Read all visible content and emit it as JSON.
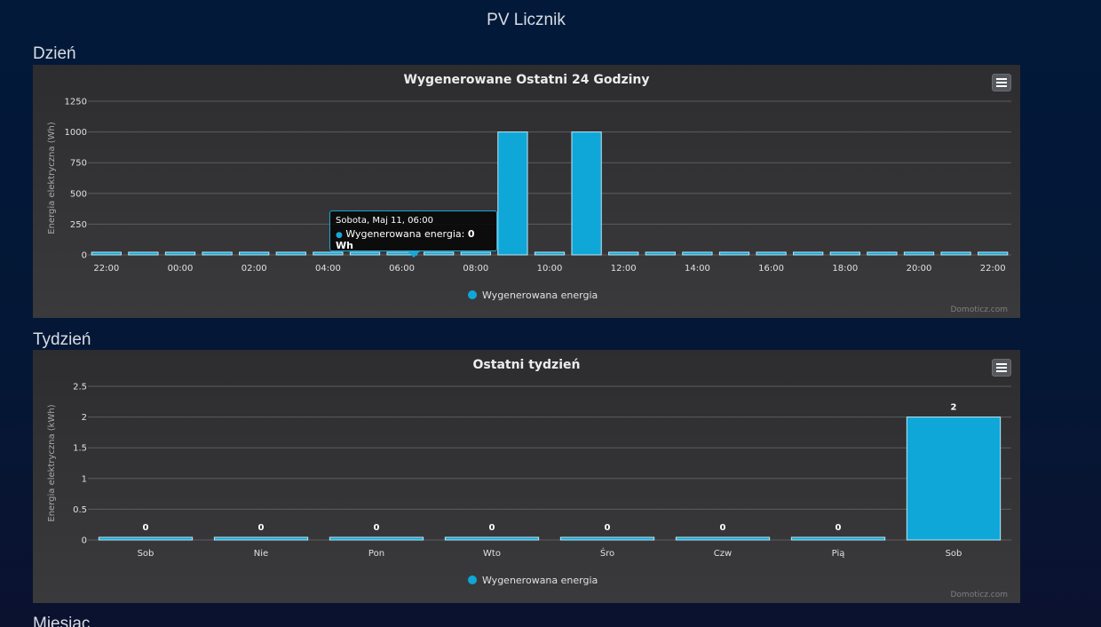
{
  "page": {
    "title": "PV Licznik",
    "section_day": "Dzień",
    "section_week": "Tydzień",
    "section_month": "Miesiąc"
  },
  "colors": {
    "bar_fill": "#0ea7d8",
    "bar_stroke": "#bfe7f5",
    "panel_bg": "#333335",
    "grid": "#5c5c5e",
    "tooltip_border": "#1aa6d6"
  },
  "chart_data": [
    {
      "type": "bar",
      "title": "Wygenerowane Ostatni 24 Godziny",
      "xlabel": "",
      "ylabel": "Energia elektryczna (Wh)",
      "ylim": [
        0,
        1250
      ],
      "yticks": [
        0,
        250,
        500,
        750,
        1000,
        1250
      ],
      "x_ticks": [
        "22:00",
        "00:00",
        "02:00",
        "04:00",
        "06:00",
        "08:00",
        "10:00",
        "12:00",
        "14:00",
        "16:00",
        "18:00",
        "20:00",
        "22:00"
      ],
      "categories": [
        "22:00",
        "23:00",
        "00:00",
        "01:00",
        "02:00",
        "03:00",
        "04:00",
        "05:00",
        "06:00",
        "07:00",
        "08:00",
        "09:00",
        "10:00",
        "11:00",
        "12:00",
        "13:00",
        "14:00",
        "15:00",
        "16:00",
        "17:00",
        "18:00",
        "19:00",
        "20:00",
        "21:00",
        "22:00"
      ],
      "series": [
        {
          "name": "Wygenerowana energia",
          "values": [
            0,
            0,
            0,
            0,
            0,
            0,
            0,
            0,
            0,
            0,
            0,
            1000,
            0,
            1000,
            0,
            0,
            0,
            0,
            0,
            0,
            0,
            0,
            0,
            0,
            0
          ]
        }
      ],
      "grid": true,
      "legend": "bottom-center",
      "credits": "Domoticz.com",
      "tooltip": {
        "header": "Sobota, Maj 11, 06:00",
        "label": "Wygenerowana energia: ",
        "value": "0 Wh"
      }
    },
    {
      "type": "bar",
      "title": "Ostatni tydzień",
      "xlabel": "",
      "ylabel": "Energia elektryczna (kWh)",
      "ylim": [
        0,
        2.5
      ],
      "yticks": [
        0,
        0.5,
        1,
        1.5,
        2,
        2.5
      ],
      "categories": [
        "Sob",
        "Nie",
        "Pon",
        "Wto",
        "Śro",
        "Czw",
        "Pią",
        "Sob"
      ],
      "series": [
        {
          "name": "Wygenerowana energia",
          "values": [
            0,
            0,
            0,
            0,
            0,
            0,
            0,
            2
          ]
        }
      ],
      "data_labels": true,
      "grid": true,
      "legend": "bottom-center",
      "credits": "Domoticz.com"
    }
  ]
}
